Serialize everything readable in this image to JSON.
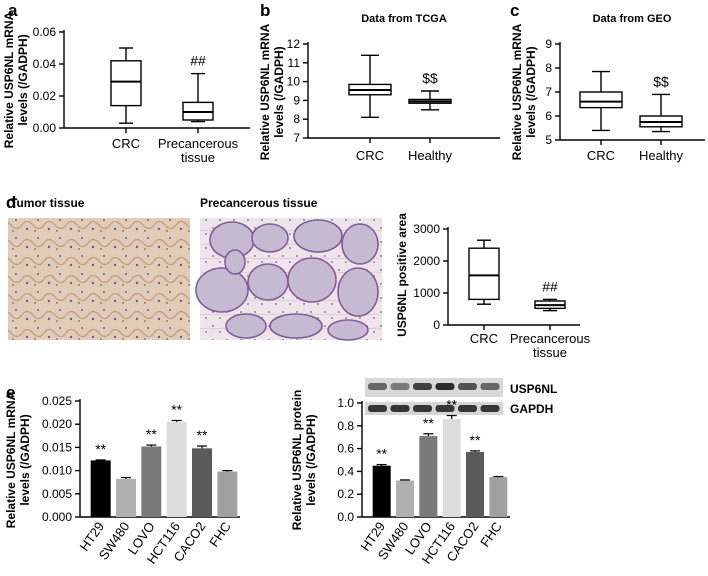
{
  "panels": {
    "a": "a",
    "b": "b",
    "c": "c",
    "d": "d",
    "e": "e"
  },
  "tissue": {
    "tumor_label": "Tumor tissue",
    "precancerous_label": "Precancerous tissue"
  },
  "blot": {
    "band1": "USP6NL",
    "band2": "GAPDH"
  },
  "colors": {
    "tumor_bg": "#e8d7c6",
    "precancer_bg": "#ede5ea",
    "gland": "#c6b9d2"
  },
  "chart_data": [
    {
      "id": "a",
      "type": "box",
      "title": "",
      "ylabel_lines": [
        "Relative USP6NL mRNA",
        "levels (/GADPH)"
      ],
      "yticks": [
        "0.00",
        "0.02",
        "0.04",
        "0.06"
      ],
      "ylim": [
        0,
        0.06
      ],
      "categories": [
        [
          "CRC"
        ],
        [
          "Precancerous",
          "tissue"
        ]
      ],
      "boxes": [
        {
          "min": 0.003,
          "q1": 0.014,
          "median": 0.029,
          "q3": 0.042,
          "max": 0.05
        },
        {
          "min": 0.004,
          "q1": 0.005,
          "median": 0.01,
          "q3": 0.016,
          "max": 0.034
        }
      ],
      "annotations": [
        "",
        "##"
      ]
    },
    {
      "id": "b",
      "type": "box",
      "title": "Data from TCGA",
      "ylabel_lines": [
        "Relative USP6NL mRNA",
        "levels (/GADPH)"
      ],
      "yticks": [
        "7",
        "8",
        "9",
        "10",
        "11",
        "12"
      ],
      "ylim": [
        7,
        12
      ],
      "categories": [
        [
          "CRC"
        ],
        [
          "Healthy"
        ]
      ],
      "boxes": [
        {
          "min": 8.1,
          "q1": 9.3,
          "median": 9.55,
          "q3": 9.85,
          "max": 11.4
        },
        {
          "min": 8.5,
          "q1": 8.85,
          "median": 8.95,
          "q3": 9.05,
          "max": 9.5
        }
      ],
      "annotations": [
        "",
        "$$"
      ]
    },
    {
      "id": "c",
      "type": "box",
      "title": "Data from GEO",
      "ylabel_lines": [
        "Relative USP6NL mRNA",
        "levels (/GADPH)"
      ],
      "yticks": [
        "5",
        "6",
        "7",
        "8",
        "9"
      ],
      "ylim": [
        5,
        9
      ],
      "categories": [
        [
          "CRC"
        ],
        [
          "Healthy"
        ]
      ],
      "boxes": [
        {
          "min": 5.4,
          "q1": 6.35,
          "median": 6.6,
          "q3": 7.0,
          "max": 7.85
        },
        {
          "min": 5.35,
          "q1": 5.55,
          "median": 5.75,
          "q3": 6.0,
          "max": 6.9
        }
      ],
      "annotations": [
        "",
        "$$"
      ]
    },
    {
      "id": "d",
      "type": "box",
      "title": "",
      "ylabel_lines": [
        "USP6NL positive area"
      ],
      "yticks": [
        "0",
        "1000",
        "2000",
        "3000"
      ],
      "ylim": [
        0,
        3000
      ],
      "categories": [
        [
          "CRC"
        ],
        [
          "Precancerous",
          "tissue"
        ]
      ],
      "boxes": [
        {
          "min": 650,
          "q1": 800,
          "median": 1550,
          "q3": 2400,
          "max": 2650
        },
        {
          "min": 450,
          "q1": 520,
          "median": 620,
          "q3": 750,
          "max": 800
        }
      ],
      "annotations": [
        "",
        "##"
      ]
    },
    {
      "id": "e1",
      "type": "bar",
      "title": "",
      "ylabel_lines": [
        "Relative USP6NL mRNA",
        "levels (/GADPH)"
      ],
      "yticks": [
        "0.000",
        "0.005",
        "0.010",
        "0.015",
        "0.020",
        "0.025"
      ],
      "ylim": [
        0,
        0.025
      ],
      "categories": [
        "HT29",
        "SW480",
        "LOVO",
        "HCT116",
        "CACO2",
        "FHC"
      ],
      "values": [
        0.0122,
        0.0082,
        0.0152,
        0.0205,
        0.0148,
        0.0098
      ],
      "errors": [
        0.0001,
        0.0003,
        0.0003,
        0.0003,
        0.0005,
        0.0002
      ],
      "colors": [
        "#000000",
        "#b0b0b0",
        "#7a7a7a",
        "#dcdcdc",
        "#5a5a5a",
        "#a0a0a0"
      ],
      "annotations": [
        "**",
        "",
        "**",
        "**",
        "**",
        ""
      ]
    },
    {
      "id": "e2",
      "type": "bar",
      "title": "",
      "ylabel_lines": [
        "Relative USP6NL protein",
        "levels (/GADPH)"
      ],
      "yticks": [
        "0.0",
        "0.2",
        "0.4",
        "0.6",
        "0.8",
        "1.0"
      ],
      "ylim": [
        0,
        1.0
      ],
      "categories": [
        "HT29",
        "SW480",
        "LOVO",
        "HCT116",
        "CACO2",
        "FHC"
      ],
      "values": [
        0.45,
        0.32,
        0.71,
        0.86,
        0.57,
        0.35
      ],
      "errors": [
        0.01,
        0.005,
        0.02,
        0.03,
        0.01,
        0.005
      ],
      "colors": [
        "#000000",
        "#b0b0b0",
        "#7a7a7a",
        "#dcdcdc",
        "#5a5a5a",
        "#a0a0a0"
      ],
      "annotations": [
        "**",
        "",
        "**",
        "**",
        "**",
        ""
      ]
    }
  ]
}
